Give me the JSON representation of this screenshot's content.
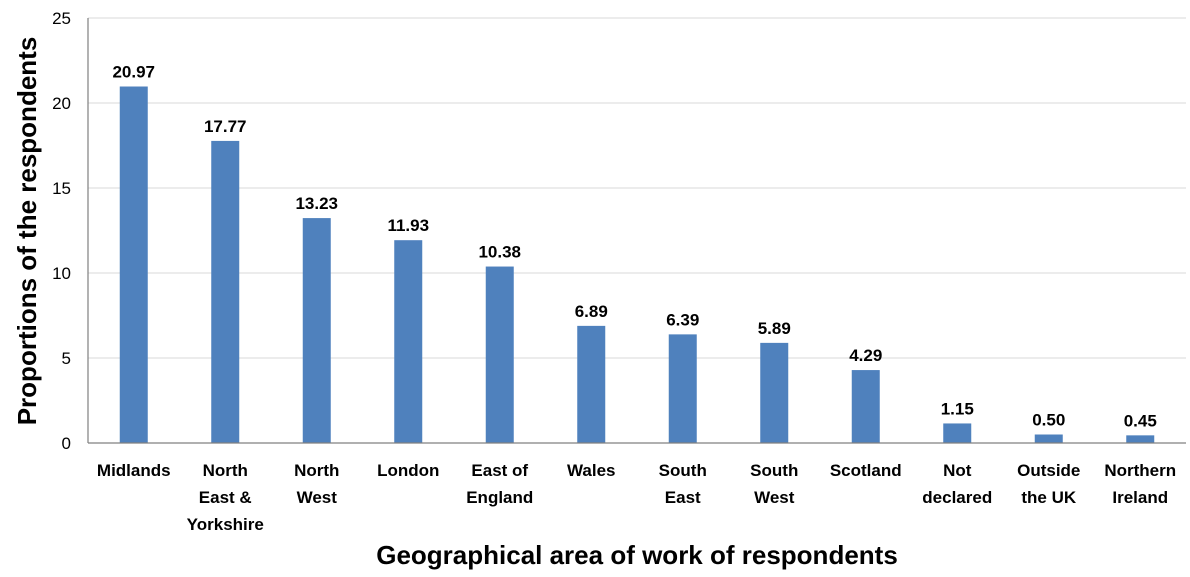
{
  "chart_data": {
    "type": "bar",
    "title": "",
    "xlabel": "Geographical area of work of respondents",
    "ylabel": "Proportions of the respondents",
    "categories": [
      "Midlands",
      "North East & Yorkshire",
      "North West",
      "London",
      "East of England",
      "Wales",
      "South East",
      "South West",
      "Scotland",
      "Not declared",
      "Outside the UK",
      "Northern Ireland"
    ],
    "category_lines": [
      [
        "Midlands"
      ],
      [
        "North",
        "East &",
        "Yorkshire"
      ],
      [
        "North",
        "West"
      ],
      [
        "London"
      ],
      [
        "East of",
        "England"
      ],
      [
        "Wales"
      ],
      [
        "South",
        "East"
      ],
      [
        "South",
        "West"
      ],
      [
        "Scotland"
      ],
      [
        "Not",
        "declared"
      ],
      [
        "Outside",
        "the UK"
      ],
      [
        "Northern",
        "Ireland"
      ]
    ],
    "values": [
      20.97,
      17.77,
      13.23,
      11.93,
      10.38,
      6.89,
      6.39,
      5.89,
      4.29,
      1.15,
      0.5,
      0.45
    ],
    "value_labels": [
      "20.97",
      "17.77",
      "13.23",
      "11.93",
      "10.38",
      "6.89",
      "6.39",
      "5.89",
      "4.29",
      "1.15",
      "0.50",
      "0.45"
    ],
    "ylim": [
      0,
      25
    ],
    "yticks": [
      0,
      5,
      10,
      15,
      20,
      25
    ],
    "grid": true,
    "legend": "none",
    "bar_color": "#4f81bd",
    "grid_color": "#d9d9d9"
  }
}
